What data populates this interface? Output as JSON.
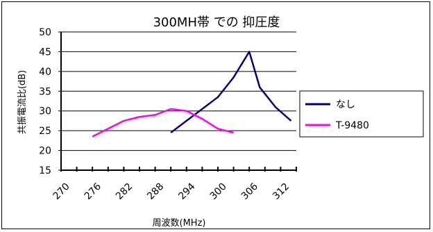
{
  "chart_data": {
    "type": "line",
    "title": "300MH帯 での 抑圧度",
    "xlabel": "周波数(MHz)",
    "ylabel": "共振電流比(dB)",
    "x_ticks": [
      270,
      273,
      276,
      279,
      282,
      285,
      288,
      291,
      294,
      297,
      300,
      303,
      306,
      309,
      312,
      315
    ],
    "x_tick_labels": [
      "270",
      "276",
      "282",
      "288",
      "294",
      "300",
      "306",
      "312"
    ],
    "xlim": [
      270,
      315
    ],
    "ylim": [
      15,
      50
    ],
    "y_ticks": [
      15,
      20,
      25,
      30,
      35,
      40,
      45,
      50
    ],
    "grid": true,
    "legend_position": "right",
    "series": [
      {
        "name": "なし",
        "color": "#00007f",
        "points": [
          [
            291,
            24.5
          ],
          [
            294,
            27.5
          ],
          [
            297,
            30.5
          ],
          [
            300,
            33.5
          ],
          [
            303,
            38.5
          ],
          [
            306,
            45
          ],
          [
            308,
            36
          ],
          [
            311,
            31
          ],
          [
            314,
            27.5
          ]
        ]
      },
      {
        "name": "T-9480",
        "color": "#ff00ff",
        "points": [
          [
            276,
            23.5
          ],
          [
            279,
            25.5
          ],
          [
            282,
            27.5
          ],
          [
            285,
            28.5
          ],
          [
            288,
            29.0
          ],
          [
            291,
            30.5
          ],
          [
            294,
            30.0
          ],
          [
            297,
            28.0
          ],
          [
            300,
            25.5
          ],
          [
            303,
            24.5
          ]
        ]
      }
    ]
  }
}
